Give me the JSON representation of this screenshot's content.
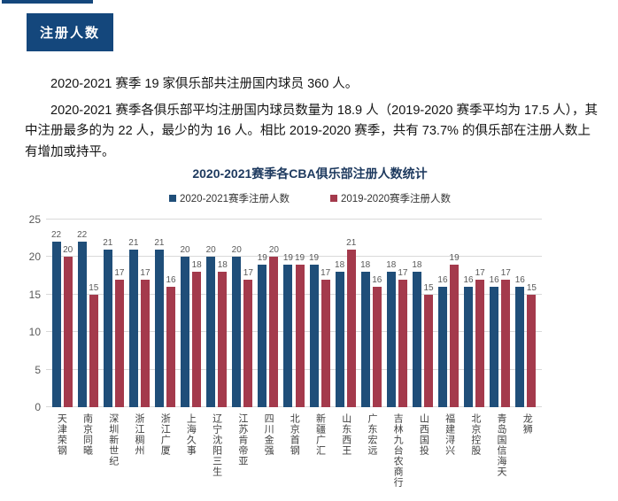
{
  "section": {
    "badge": "注册人数"
  },
  "paragraphs": [
    "2020-2021 赛季 19 家俱乐部共注册国内球员 360 人。",
    "2020-2021 赛季各俱乐部平均注册国内球员数量为 18.9 人（2019-2020 赛季平均为 17.5 人），其中注册最多的为 22 人，最少的为 16 人。相比 2019-2020 赛季，共有 73.7% 的俱乐部在注册人数上有增加或持平。"
  ],
  "colors": {
    "badge_bg": "#14477C",
    "navy_bar": "#1F4E79",
    "red_bar": "#A43A4C",
    "gridline": "#D9D9D9",
    "axis_text": "#595959"
  },
  "chart_data": {
    "type": "bar",
    "title": "2020-2021赛季各CBA俱乐部注册人数统计",
    "categories": [
      "天津荣钢",
      "南京同曦",
      "深圳新世纪",
      "浙江稠州",
      "浙江广厦",
      "上海久事",
      "辽宁沈阳三生",
      "江苏肯帝亚",
      "四川金强",
      "北京首钢",
      "新疆广汇",
      "山东西王",
      "广东宏远",
      "吉林九台农商行",
      "山西国投",
      "福建浔兴",
      "北京控股",
      "青岛国信海天",
      "龙狮"
    ],
    "series": [
      {
        "name": "2020-2021赛季注册人数",
        "color": "#1F4E79",
        "values": [
          22,
          22,
          21,
          21,
          21,
          20,
          20,
          20,
          19,
          19,
          19,
          18,
          18,
          18,
          18,
          16,
          16,
          16,
          16
        ]
      },
      {
        "name": "2019-2020赛季注册人数",
        "color": "#A43A4C",
        "values": [
          20,
          15,
          17,
          17,
          16,
          18,
          18,
          17,
          20,
          19,
          17,
          21,
          16,
          17,
          15,
          19,
          17,
          17,
          15
        ]
      }
    ],
    "ylim": [
      0,
      25
    ],
    "yticks": [
      0,
      5,
      10,
      15,
      20,
      25
    ],
    "grid": true,
    "legend_position": "top",
    "data_labels": true
  }
}
